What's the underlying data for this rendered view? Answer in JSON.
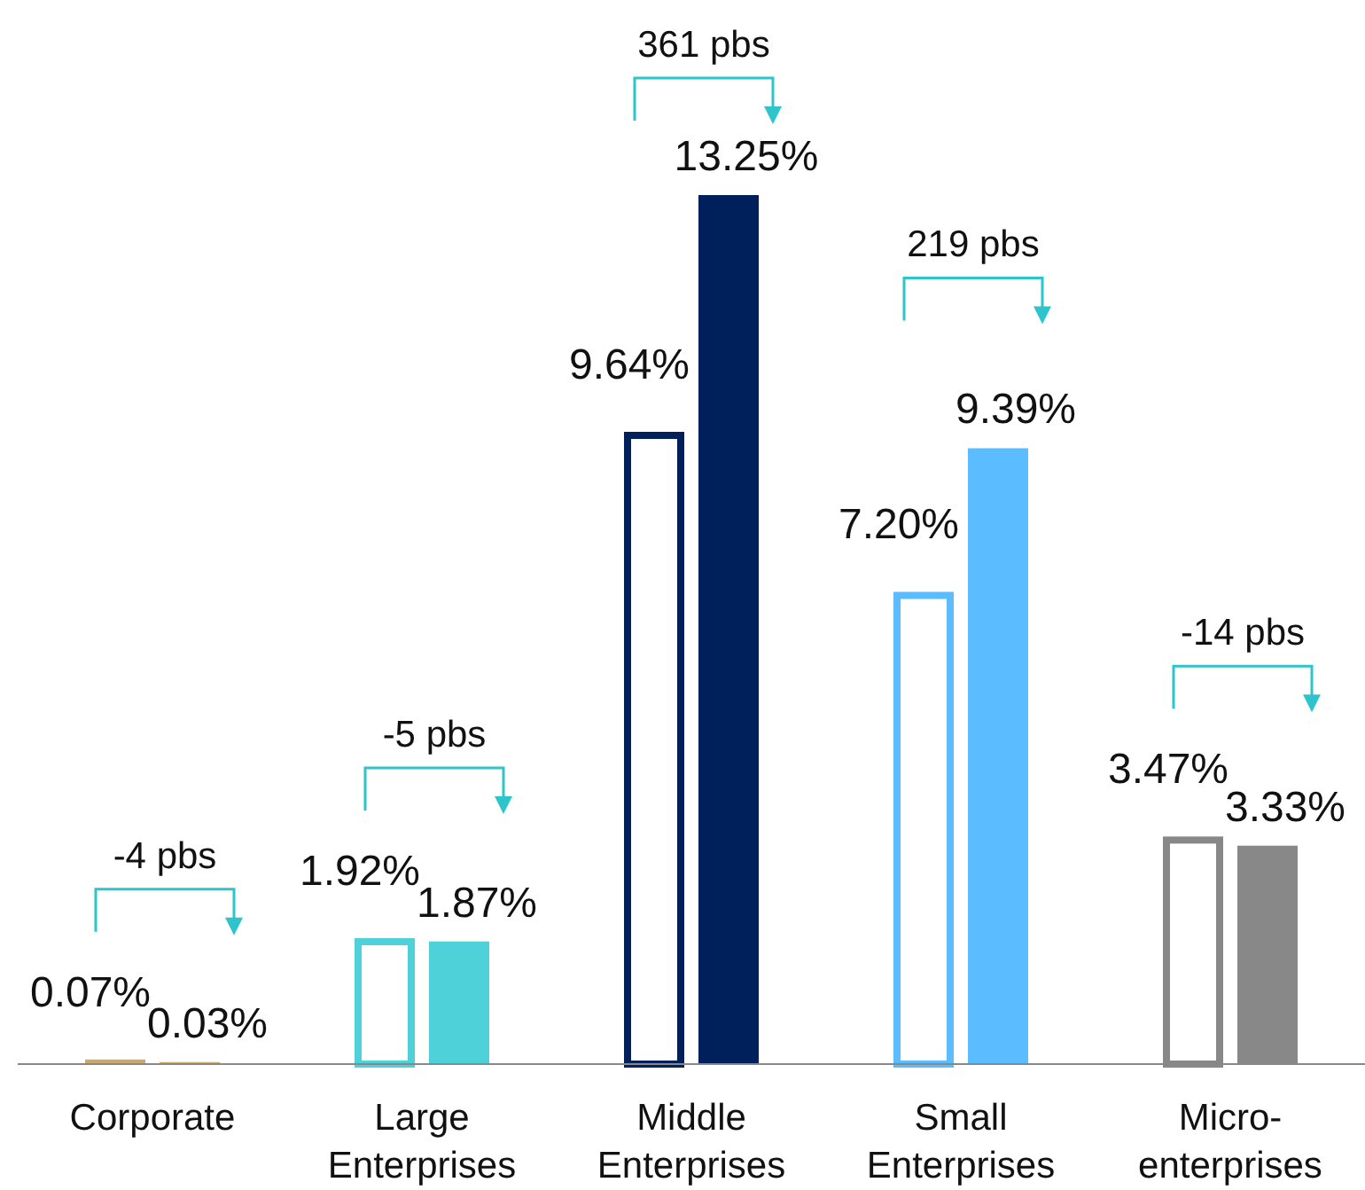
{
  "chart_data": {
    "type": "bar",
    "categories": [
      "Corporate",
      "Large Enterprises",
      "Middle Enterprises",
      "Small Enterprises",
      "Micro-enterprises"
    ],
    "series": [
      {
        "colors": [
          "#c9a96e",
          "#4fd1d9",
          "#00205b",
          "#5bbcff",
          "#888888"
        ],
        "values": [
          0.07,
          1.92,
          9.64,
          7.2,
          3.47
        ],
        "value_labels": [
          "0.07%",
          "1.92%",
          "9.64%",
          "7.20%",
          "3.47%"
        ]
      },
      {
        "colors": [
          "#c9a96e",
          "#4fd1d9",
          "#00205b",
          "#5bbcff",
          "#888888"
        ],
        "values": [
          0.03,
          1.87,
          13.25,
          9.39,
          3.33
        ],
        "value_labels": [
          "0.03%",
          "1.87%",
          "13.25%",
          "9.39%",
          "3.33%"
        ]
      }
    ],
    "annotations": [
      "-4 pbs",
      "-5 pbs",
      "361 pbs",
      "219 pbs",
      "-14 pbs"
    ]
  }
}
